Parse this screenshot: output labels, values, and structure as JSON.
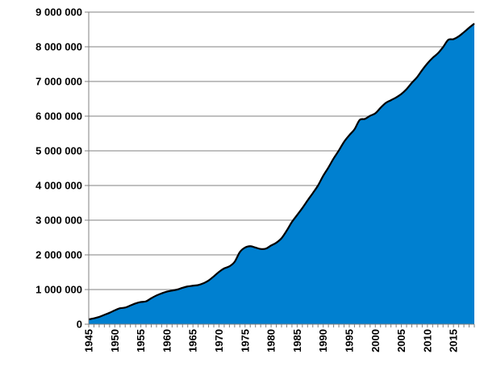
{
  "chart_data": {
    "type": "area",
    "title": "",
    "xlabel": "",
    "ylabel": "",
    "xlim": [
      1945,
      2019
    ],
    "ylim": [
      0,
      9000000
    ],
    "grid": true,
    "legend": "none",
    "fill_color": "#0080D0",
    "line_color": "#000000",
    "y_ticks": [
      0,
      1000000,
      2000000,
      3000000,
      4000000,
      5000000,
      6000000,
      7000000,
      8000000,
      9000000
    ],
    "y_tick_labels": [
      "0",
      "1 000 000",
      "2 000 000",
      "3 000 000",
      "4 000 000",
      "5 000 000",
      "6 000 000",
      "7 000 000",
      "8 000 000",
      "9 000 000"
    ],
    "x_ticks": [
      1945,
      1950,
      1955,
      1960,
      1965,
      1970,
      1975,
      1980,
      1985,
      1990,
      1995,
      2000,
      2005,
      2010,
      2015
    ],
    "x_tick_labels": [
      "1945",
      "1950",
      "1955",
      "1960",
      "1965",
      "1970",
      "1975",
      "1980",
      "1985",
      "1990",
      "1995",
      "2000",
      "2005",
      "2010",
      "2015"
    ],
    "series": [
      {
        "x": [
          1945,
          1946,
          1947,
          1948,
          1949,
          1950,
          1951,
          1952,
          1953,
          1954,
          1955,
          1956,
          1957,
          1958,
          1959,
          1960,
          1961,
          1962,
          1963,
          1964,
          1965,
          1966,
          1967,
          1968,
          1969,
          1970,
          1971,
          1972,
          1973,
          1974,
          1975,
          1976,
          1977,
          1978,
          1979,
          1980,
          1981,
          1982,
          1983,
          1984,
          1985,
          1986,
          1987,
          1988,
          1989,
          1990,
          1991,
          1992,
          1993,
          1994,
          1995,
          1996,
          1997,
          1998,
          1999,
          2000,
          2001,
          2002,
          2003,
          2004,
          2005,
          2006,
          2007,
          2008,
          2009,
          2010,
          2011,
          2012,
          2013,
          2014,
          2015,
          2016,
          2017,
          2018,
          2019
        ],
        "values": [
          140000,
          170000,
          210000,
          270000,
          330000,
          400000,
          460000,
          480000,
          540000,
          600000,
          640000,
          660000,
          750000,
          830000,
          890000,
          940000,
          970000,
          1000000,
          1050000,
          1090000,
          1110000,
          1130000,
          1180000,
          1260000,
          1380000,
          1510000,
          1610000,
          1670000,
          1800000,
          2080000,
          2210000,
          2250000,
          2210000,
          2170000,
          2180000,
          2270000,
          2350000,
          2480000,
          2700000,
          2950000,
          3150000,
          3350000,
          3570000,
          3780000,
          4000000,
          4280000,
          4520000,
          4780000,
          5010000,
          5260000,
          5450000,
          5620000,
          5890000,
          5920000,
          6010000,
          6080000,
          6240000,
          6380000,
          6460000,
          6540000,
          6640000,
          6780000,
          6960000,
          7120000,
          7330000,
          7520000,
          7680000,
          7810000,
          7990000,
          8200000,
          8220000,
          8300000,
          8420000,
          8550000,
          8670000
        ]
      }
    ]
  }
}
